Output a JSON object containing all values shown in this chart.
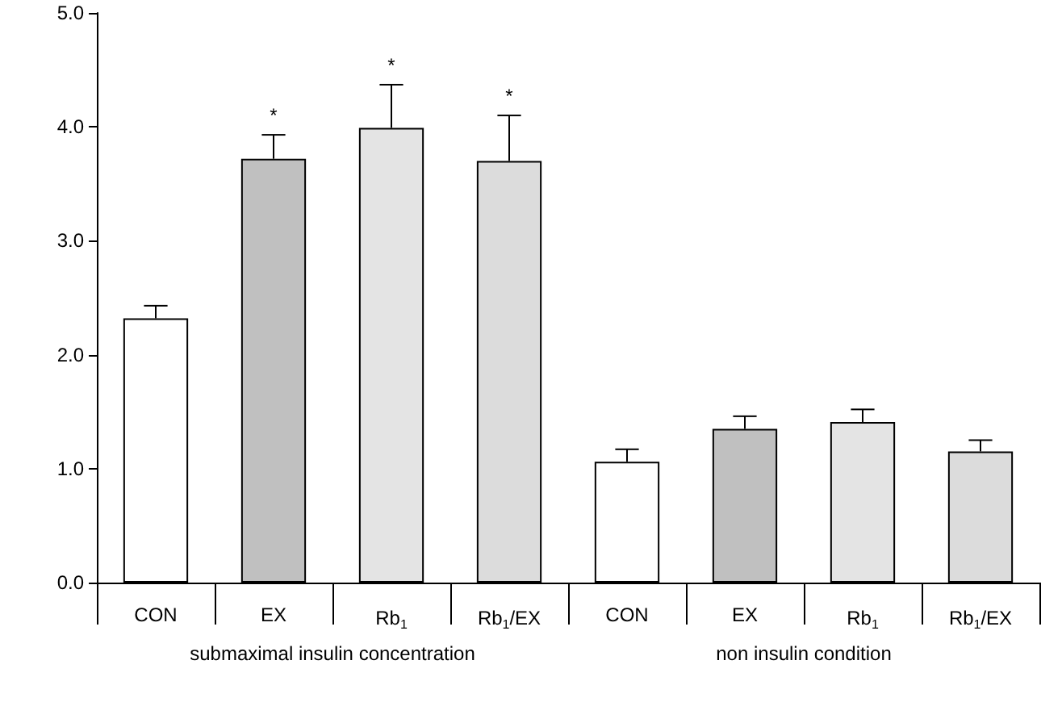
{
  "chart_data": {
    "type": "bar",
    "categories": [
      "CON",
      "EX",
      "Rb$_{1}$",
      "Rb$_{1}$/EX",
      "CON",
      "EX",
      "Rb$_{1}$",
      "Rb$_{1}$/EX"
    ],
    "values": [
      2.32,
      3.72,
      3.99,
      3.7,
      1.06,
      1.35,
      1.41,
      1.15
    ],
    "errors": [
      0.11,
      0.21,
      0.38,
      0.4,
      0.11,
      0.11,
      0.11,
      0.1
    ],
    "value_labels": [
      null,
      "*",
      "*",
      "*",
      null,
      null,
      null,
      null
    ],
    "colors": [
      "#ffffff",
      "#c0c0c0",
      "#e4e4e4",
      "#dcdcdc",
      "#ffffff",
      "#c0c0c0",
      "#e4e4e4",
      "#dcdcdc"
    ],
    "ylim": [
      0,
      5
    ],
    "yticks": [
      {
        "value": 0,
        "label": "0.0"
      },
      {
        "value": 1,
        "label": "1.0"
      },
      {
        "value": 2,
        "label": "2.0"
      },
      {
        "value": 3,
        "label": "3.0"
      },
      {
        "value": 4,
        "label": "4.0"
      },
      {
        "value": 5,
        "label": "5.0"
      }
    ],
    "annotations": [
      "submaximal insulin concentration",
      "non insulin condition"
    ],
    "grid": false
  }
}
